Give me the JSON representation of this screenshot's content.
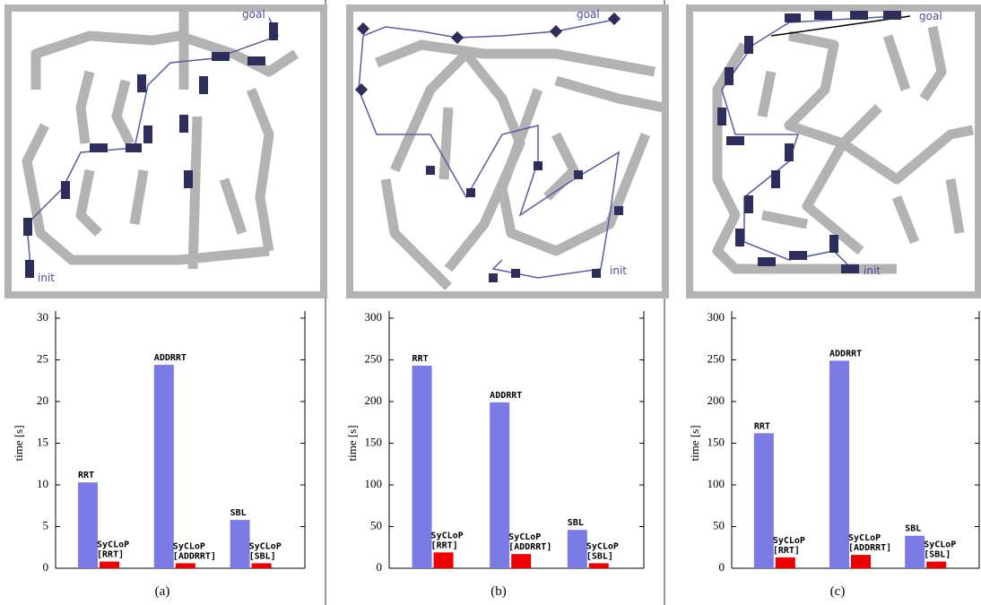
{
  "chart_data": [
    {
      "type": "bar",
      "ylabel": "time [s]",
      "categories": [
        "RRT",
        "SyCLoP [RRT]",
        "ADDRRT",
        "SyCLoP [ADDRRT]",
        "SBL",
        "SyCLoP [SBL]"
      ],
      "values": [
        10.3,
        0.8,
        24.4,
        0.6,
        5.8,
        0.6
      ],
      "colors": [
        "#7b7be6",
        "#ee0000",
        "#7b7be6",
        "#ee0000",
        "#7b7be6",
        "#ee0000"
      ],
      "ylim": [
        0,
        30
      ],
      "yticks": [
        0,
        5,
        10,
        15,
        20,
        25,
        30
      ]
    },
    {
      "type": "bar",
      "ylabel": "time [s]",
      "categories": [
        "RRT",
        "SyCLoP [RRT]",
        "ADDRRT",
        "SyCLoP [ADDRRT]",
        "SBL",
        "SyCLoP [SBL]"
      ],
      "values": [
        243,
        19,
        199,
        17,
        46,
        6
      ],
      "colors": [
        "#7b7be6",
        "#ee0000",
        "#7b7be6",
        "#ee0000",
        "#7b7be6",
        "#ee0000"
      ],
      "ylim": [
        0,
        300
      ],
      "yticks": [
        0,
        50,
        100,
        150,
        200,
        250,
        300
      ]
    },
    {
      "type": "bar",
      "ylabel": "time [s]",
      "categories": [
        "RRT",
        "SyCLoP [RRT]",
        "ADDRRT",
        "SyCLoP [ADDRRT]",
        "SBL",
        "SyCLoP [SBL]"
      ],
      "values": [
        162,
        13,
        249,
        16,
        39,
        8
      ],
      "colors": [
        "#7b7be6",
        "#ee0000",
        "#7b7be6",
        "#ee0000",
        "#7b7be6",
        "#ee0000"
      ],
      "ylim": [
        0,
        300
      ],
      "yticks": [
        0,
        50,
        100,
        150,
        200,
        250,
        300
      ]
    }
  ],
  "panels": [
    {
      "caption": "(a)",
      "goal": "goal",
      "init": "init"
    },
    {
      "caption": "(b)",
      "goal": "goal",
      "init": "init"
    },
    {
      "caption": "(c)",
      "goal": "goal",
      "init": "init"
    }
  ]
}
